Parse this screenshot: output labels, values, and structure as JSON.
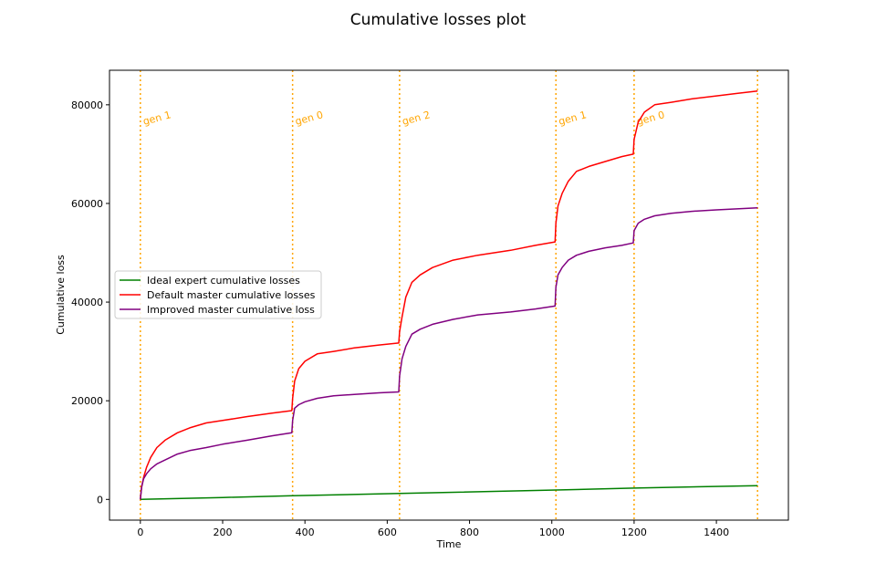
{
  "chart_data": {
    "type": "line",
    "title": "Cumulative losses plot",
    "xlabel": "Time",
    "ylabel": "Cumulative loss",
    "xlim": [
      -75,
      1575
    ],
    "ylim": [
      -4200,
      87000
    ],
    "xticks": [
      0,
      200,
      400,
      600,
      800,
      1000,
      1200,
      1400
    ],
    "yticks": [
      0,
      20000,
      40000,
      60000,
      80000
    ],
    "xtick_labels": [
      "0",
      "200",
      "400",
      "600",
      "800",
      "1000",
      "1200",
      "1400"
    ],
    "ytick_labels": [
      "0",
      "20000",
      "40000",
      "60000",
      "80000"
    ],
    "grid": false,
    "legend_position": "center-left",
    "vlines": [
      {
        "x": 0,
        "label": "gen 1"
      },
      {
        "x": 370,
        "label": "gen 0"
      },
      {
        "x": 630,
        "label": "gen 2"
      },
      {
        "x": 1010,
        "label": "gen 1"
      },
      {
        "x": 1200,
        "label": "gen 0"
      },
      {
        "x": 1500,
        "label": ""
      }
    ],
    "vline_color": "#ffa500",
    "series": [
      {
        "name": "Ideal expert cumulative losses",
        "color": "#008000",
        "x": [
          0,
          200,
          370,
          630,
          1010,
          1200,
          1500
        ],
        "y": [
          0,
          380,
          750,
          1200,
          1900,
          2300,
          2800
        ]
      },
      {
        "name": "Default master cumulative losses",
        "color": "#ff0000",
        "x": [
          0,
          3,
          8,
          15,
          25,
          40,
          60,
          90,
          120,
          160,
          200,
          260,
          320,
          368,
          370,
          375,
          385,
          400,
          430,
          470,
          520,
          580,
          628,
          630,
          636,
          645,
          660,
          680,
          710,
          760,
          820,
          900,
          960,
          1008,
          1010,
          1015,
          1025,
          1040,
          1060,
          1090,
          1130,
          1170,
          1198,
          1200,
          1210,
          1225,
          1250,
          1290,
          1340,
          1400,
          1450,
          1500
        ],
        "y": [
          0,
          2500,
          4500,
          6500,
          8500,
          10500,
          12000,
          13500,
          14500,
          15500,
          16000,
          16800,
          17500,
          18000,
          20500,
          24000,
          26500,
          28000,
          29500,
          30000,
          30700,
          31300,
          31700,
          34000,
          37000,
          41000,
          44000,
          45500,
          47000,
          48500,
          49500,
          50500,
          51500,
          52200,
          56000,
          59500,
          62000,
          64500,
          66500,
          67500,
          68500,
          69500,
          70000,
          73000,
          76500,
          78500,
          80000,
          80500,
          81200,
          81800,
          82300,
          82800
        ]
      },
      {
        "name": "Improved master cumulative loss",
        "color": "#800080",
        "x": [
          0,
          3,
          8,
          15,
          25,
          40,
          60,
          90,
          120,
          160,
          200,
          260,
          320,
          368,
          370,
          375,
          385,
          400,
          430,
          470,
          520,
          580,
          628,
          630,
          636,
          645,
          660,
          680,
          710,
          760,
          820,
          900,
          960,
          1008,
          1010,
          1015,
          1025,
          1040,
          1060,
          1090,
          1130,
          1170,
          1198,
          1200,
          1210,
          1225,
          1250,
          1290,
          1340,
          1400,
          1450,
          1500
        ],
        "y": [
          0,
          2500,
          4200,
          5200,
          6200,
          7200,
          8000,
          9200,
          9900,
          10500,
          11200,
          12000,
          12900,
          13500,
          16000,
          18500,
          19200,
          19800,
          20500,
          21000,
          21300,
          21600,
          21800,
          25000,
          28500,
          31000,
          33500,
          34500,
          35500,
          36500,
          37400,
          38000,
          38600,
          39200,
          43000,
          45500,
          47000,
          48500,
          49500,
          50300,
          51000,
          51500,
          52000,
          54500,
          56000,
          56800,
          57500,
          58000,
          58400,
          58700,
          58900,
          59100
        ]
      }
    ]
  }
}
